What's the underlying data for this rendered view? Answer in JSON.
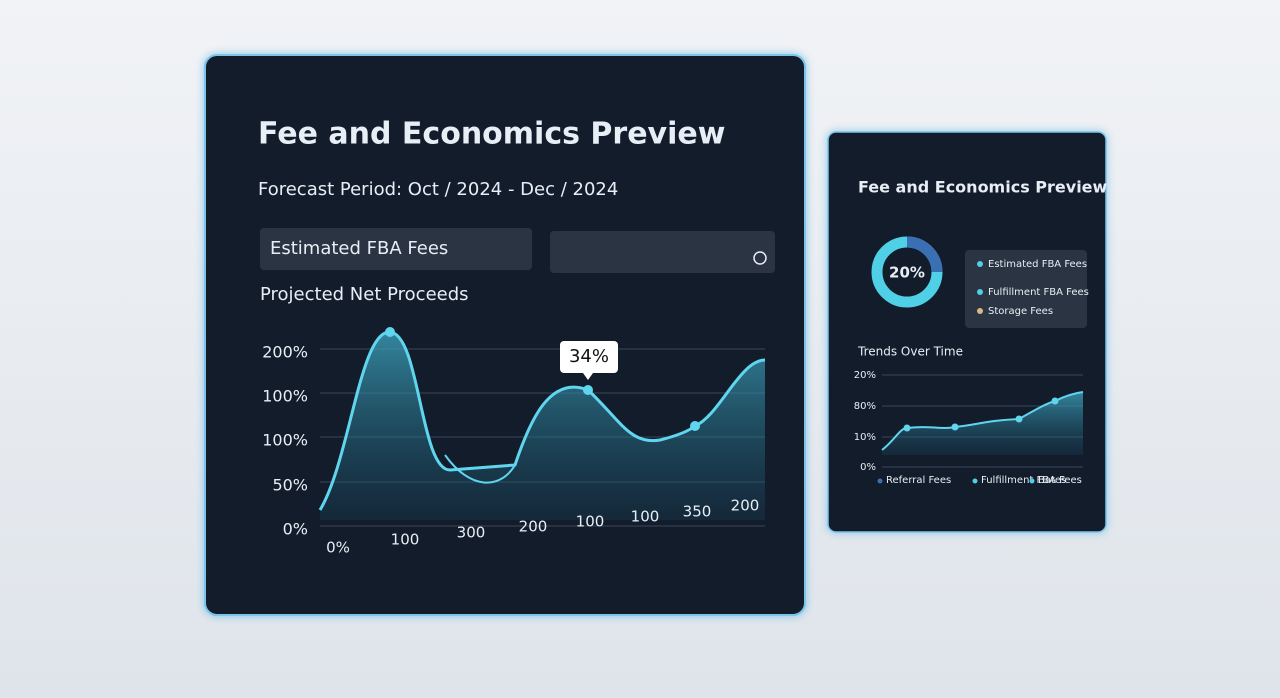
{
  "main_panel": {
    "title": "Fee and Economics Preview",
    "subtitle": "Forecast Period: Oct / 2024 - Dec / 2024",
    "field_label": "Estimated FBA Fees",
    "chart_title": "Projected Net Proceeds",
    "y_labels": [
      "200%",
      "100%",
      "100%",
      "50%",
      "0%"
    ],
    "x_labels": [
      "0%",
      "100",
      "300",
      "200",
      "100",
      "100",
      "350",
      "200"
    ],
    "tooltip": "34%"
  },
  "side_panel": {
    "title": "Fee and Economics Preview",
    "donut_label": "20%",
    "legend": [
      "Estimated FBA Fees",
      "Fulfillment FBA Fees",
      "Storage Fees"
    ],
    "trends_title": "Trends Over Time",
    "y_labels": [
      "20%",
      "80%",
      "10%",
      "0%"
    ],
    "trend_legend": [
      "Referral Fees",
      "Fulfillment FBA Fees",
      "Bates"
    ]
  }
}
